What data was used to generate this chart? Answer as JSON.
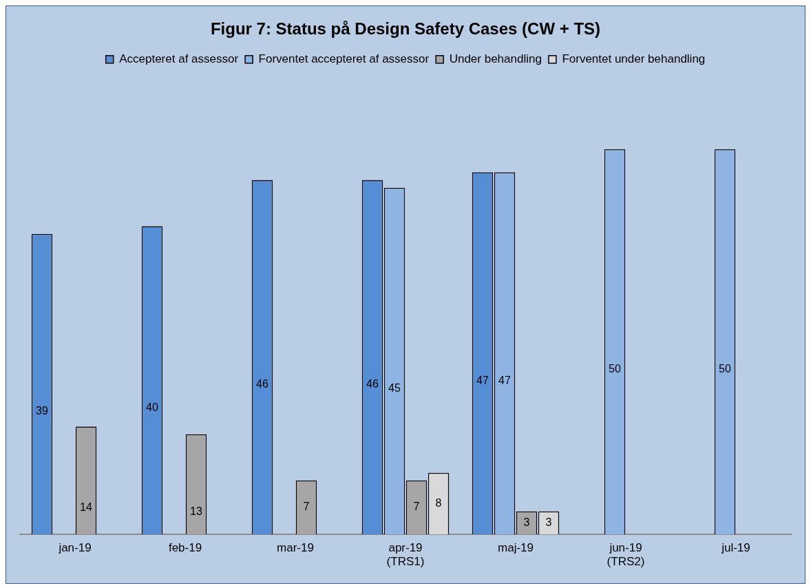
{
  "chart_data": {
    "type": "bar",
    "title": "Figur 7: Status på Design Safety Cases (CW + TS)",
    "categories": [
      "jan-19",
      "feb-19",
      "mar-19",
      "apr-19\n(TRS1)",
      "maj-19",
      "jun-19\n(TRS2)",
      "jul-19"
    ],
    "series": [
      {
        "name": "Accepteret af assessor",
        "color": "#558ed5",
        "values": [
          39,
          40,
          46,
          46,
          47,
          null,
          null
        ]
      },
      {
        "name": "Forventet accepteret af assessor",
        "color": "#8eb4e3",
        "values": [
          null,
          null,
          null,
          45,
          47,
          50,
          50
        ]
      },
      {
        "name": "Under behandling",
        "color": "#a6a6a6",
        "values": [
          14,
          13,
          7,
          7,
          3,
          null,
          null
        ]
      },
      {
        "name": "Forventet under behandling",
        "color": "#d9d9d9",
        "values": [
          null,
          null,
          null,
          8,
          3,
          null,
          null
        ]
      }
    ],
    "data_labels": true,
    "legend": "top",
    "grid": false
  }
}
